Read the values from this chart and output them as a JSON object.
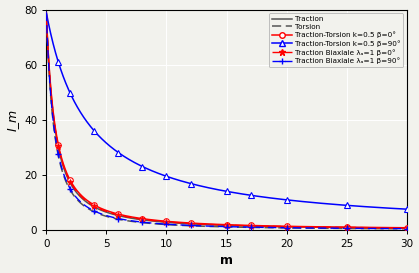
{
  "title": "",
  "xlabel": "m",
  "ylabel": "I_m",
  "xlim": [
    0,
    30
  ],
  "ylim": [
    0,
    80
  ],
  "xticks": [
    0,
    5,
    10,
    15,
    20,
    25,
    30
  ],
  "yticks": [
    0,
    20,
    40,
    60,
    80
  ],
  "m_markers": [
    1,
    2,
    4,
    6,
    8,
    10,
    12,
    15,
    17,
    20,
    25,
    30
  ],
  "curves": {
    "traction": {
      "a": 79.0,
      "b": 1.0,
      "c": 1.4
    },
    "torsion": {
      "a": 79.0,
      "b": 1.0,
      "c": 1.55
    },
    "tt_b0": {
      "a": 79.0,
      "b": 1.0,
      "c": 1.35
    },
    "tt_b90": {
      "a": 79.0,
      "b": 0.28,
      "c": 1.05
    },
    "biax_b0": {
      "a": 79.0,
      "b": 1.0,
      "c": 1.38
    },
    "biax_b90": {
      "a": 79.0,
      "b": 1.0,
      "c": 1.52
    }
  },
  "legend_entries": [
    "Traction",
    "Torsion",
    "Traction-Torsion k=0.5 β=0°",
    "Traction-Torsion k=0.5 β=90°",
    "Traction Biaxiale λₐ=1 β=0°",
    "Traction Biaxiale λₐ=1 β=90°"
  ],
  "gray_color": "#555555",
  "background_color": "#f2f2ed"
}
